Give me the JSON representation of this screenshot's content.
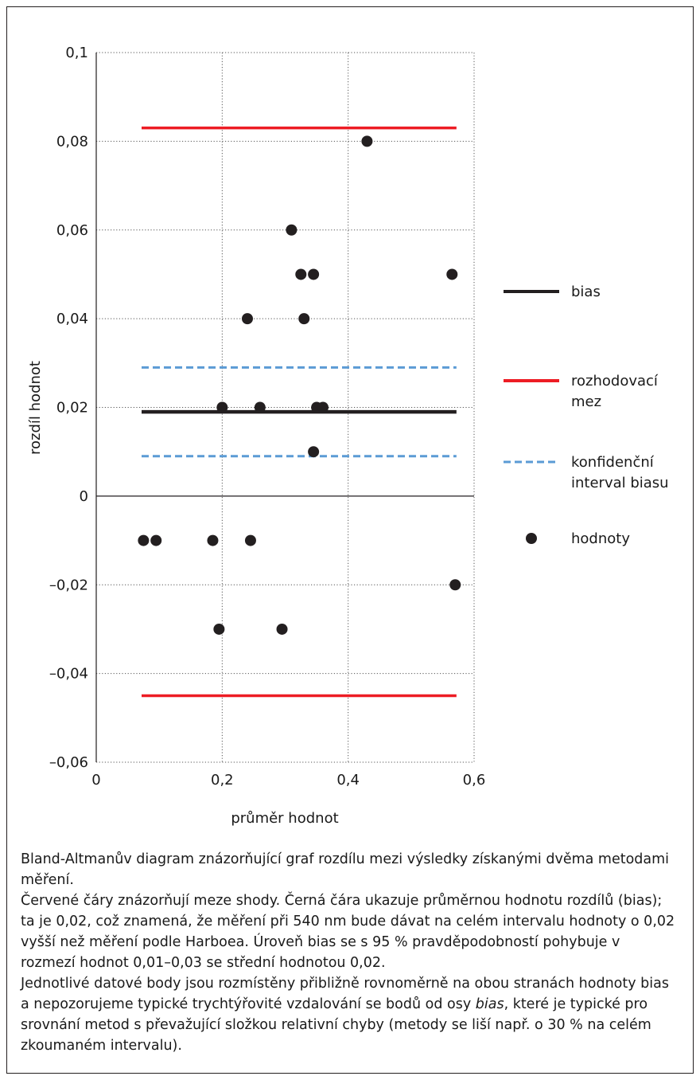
{
  "chart_data": {
    "type": "scatter",
    "xlabel": "průměr hodnot",
    "ylabel": "rozdíl hodnot",
    "xlim": [
      0,
      0.6
    ],
    "ylim": [
      -0.06,
      0.1
    ],
    "x_ticks": [
      0,
      0.2,
      0.4,
      0.6
    ],
    "x_tick_labels": [
      "0",
      "0,2",
      "0,4",
      "0,6"
    ],
    "y_ticks": [
      -0.06,
      -0.04,
      -0.02,
      0,
      0.02,
      0.04,
      0.06,
      0.08,
      0.1
    ],
    "y_tick_labels": [
      "–0,06",
      "–0,04",
      "–0,02",
      "0",
      "0,02",
      "0,04",
      "0,06",
      "0,08",
      "0,1"
    ],
    "grid": "dotted",
    "legend_position": "right",
    "points": [
      {
        "x": 0.43,
        "y": 0.08
      },
      {
        "x": 0.31,
        "y": 0.06
      },
      {
        "x": 0.325,
        "y": 0.05
      },
      {
        "x": 0.345,
        "y": 0.05
      },
      {
        "x": 0.565,
        "y": 0.05
      },
      {
        "x": 0.24,
        "y": 0.04
      },
      {
        "x": 0.33,
        "y": 0.04
      },
      {
        "x": 0.2,
        "y": 0.02
      },
      {
        "x": 0.26,
        "y": 0.02
      },
      {
        "x": 0.35,
        "y": 0.02
      },
      {
        "x": 0.36,
        "y": 0.02
      },
      {
        "x": 0.345,
        "y": 0.01
      },
      {
        "x": 0.075,
        "y": -0.01
      },
      {
        "x": 0.095,
        "y": -0.01
      },
      {
        "x": 0.185,
        "y": -0.01
      },
      {
        "x": 0.245,
        "y": -0.01
      },
      {
        "x": 0.57,
        "y": -0.02
      },
      {
        "x": 0.195,
        "y": -0.03
      },
      {
        "x": 0.295,
        "y": -0.03
      }
    ],
    "lines": [
      {
        "key": "bias",
        "y": 0.019,
        "x_from": 0.072,
        "x_to": 0.572,
        "color": "#231f20",
        "style": "solid"
      },
      {
        "key": "limit_upper",
        "y": 0.083,
        "x_from": 0.072,
        "x_to": 0.572,
        "color": "#ed1c24",
        "style": "solid"
      },
      {
        "key": "limit_lower",
        "y": -0.045,
        "x_from": 0.072,
        "x_to": 0.572,
        "color": "#ed1c24",
        "style": "solid"
      },
      {
        "key": "ci_upper",
        "y": 0.029,
        "x_from": 0.072,
        "x_to": 0.572,
        "color": "#5b9bd5",
        "style": "dashed"
      },
      {
        "key": "ci_lower",
        "y": 0.009,
        "x_from": 0.072,
        "x_to": 0.572,
        "color": "#5b9bd5",
        "style": "dashed"
      }
    ],
    "legend": [
      {
        "type": "line",
        "color": "#231f20",
        "dashed": false,
        "lines": [
          "bias"
        ]
      },
      {
        "type": "line",
        "color": "#ed1c24",
        "dashed": false,
        "lines": [
          "rozhodovací",
          "mez"
        ]
      },
      {
        "type": "line",
        "color": "#5b9bd5",
        "dashed": true,
        "lines": [
          "konfidenční",
          "interval biasu"
        ]
      },
      {
        "type": "marker",
        "color": "#231f20",
        "dashed": false,
        "lines": [
          "hodnoty"
        ]
      }
    ]
  },
  "caption": {
    "p1": "Bland-Altmanův diagram znázorňující graf rozdílu mezi výsledky získanými dvěma metodami měření.",
    "p2": "Červené čáry znázorňují meze shody. Černá čára ukazuje průměrnou hodnotu rozdílů (bias); ta je 0,02, což znamená, že měření při 540 nm bude dávat na celém intervalu hodnoty o 0,02 vyšší než měření podle Harboea. Úroveň bias se s 95 % pravděpodobností pohybuje v rozmezí hodnot 0,01–0,03 se střední hodnotou 0,02.",
    "p3_before": "Jednotlivé datové body jsou rozmístěny přibližně rovnoměrně na obou stranách hodnoty bias a nepozorujeme typické trychtýřovité vzdalování se bodů od osy ",
    "p3_italic": "bias",
    "p3_after": ", které je typické pro srovnání metod s převažující složkou relativní chyby (metody se liší např. o 30 % na celém zkoumaném intervalu)."
  }
}
